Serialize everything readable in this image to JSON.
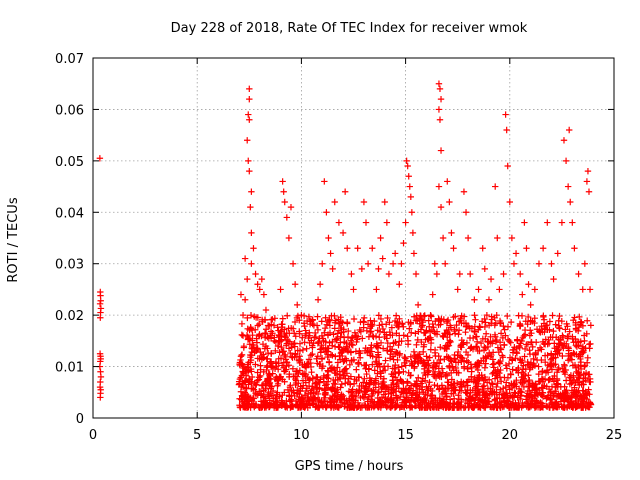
{
  "chart_data": {
    "type": "scatter",
    "title": "Day 228 of 2018, Rate Of TEC Index for receiver wmok",
    "xlabel": "GPS time / hours",
    "ylabel": "ROTI / TECUs",
    "xlim": [
      0,
      25
    ],
    "ylim": [
      0,
      0.07
    ],
    "xticks": [
      0,
      5,
      10,
      15,
      20,
      25
    ],
    "yticks": [
      0,
      0.01,
      0.02,
      0.03,
      0.04,
      0.05,
      0.06,
      0.07
    ],
    "ytick_labels": [
      "0",
      "0.01",
      "0.02",
      "0.03",
      "0.04",
      "0.05",
      "0.06",
      "0.07"
    ],
    "grid": true,
    "marker": "+",
    "color": "#ff0000",
    "series": [
      {
        "points": [
          [
            0.33,
            0.0505
          ],
          [
            0.35,
            0.0245
          ],
          [
            0.36,
            0.0238
          ],
          [
            0.37,
            0.0228
          ],
          [
            0.34,
            0.0222
          ],
          [
            0.38,
            0.0213
          ],
          [
            0.36,
            0.0205
          ],
          [
            0.35,
            0.0195
          ],
          [
            0.34,
            0.0125
          ],
          [
            0.36,
            0.012
          ],
          [
            0.37,
            0.0115
          ],
          [
            0.35,
            0.011
          ],
          [
            0.33,
            0.01
          ],
          [
            0.36,
            0.009
          ],
          [
            0.38,
            0.008
          ],
          [
            0.35,
            0.007
          ],
          [
            0.34,
            0.006
          ],
          [
            0.37,
            0.0055
          ],
          [
            0.36,
            0.0048
          ],
          [
            0.35,
            0.004
          ],
          [
            7.1,
            0.024
          ],
          [
            7.2,
            0.02
          ],
          [
            7.3,
            0.023
          ],
          [
            7.2,
            0.016
          ],
          [
            7.1,
            0.012
          ],
          [
            7.3,
            0.009
          ],
          [
            7.2,
            0.006
          ],
          [
            7.4,
            0.004
          ],
          [
            7.3,
            0.031
          ],
          [
            7.4,
            0.027
          ],
          [
            7.5,
            0.064
          ],
          [
            7.5,
            0.062
          ],
          [
            7.45,
            0.059
          ],
          [
            7.5,
            0.058
          ],
          [
            7.4,
            0.054
          ],
          [
            7.45,
            0.05
          ],
          [
            7.5,
            0.048
          ],
          [
            7.6,
            0.044
          ],
          [
            7.55,
            0.041
          ],
          [
            7.6,
            0.036
          ],
          [
            7.7,
            0.033
          ],
          [
            7.6,
            0.03
          ],
          [
            7.8,
            0.028
          ],
          [
            7.9,
            0.026
          ],
          [
            8.0,
            0.025
          ],
          [
            8.1,
            0.027
          ],
          [
            8.2,
            0.024
          ],
          [
            8.3,
            0.021
          ],
          [
            8.4,
            0.018
          ],
          [
            8.5,
            0.016
          ],
          [
            8.7,
            0.015
          ],
          [
            8.9,
            0.017
          ],
          [
            9.0,
            0.025
          ],
          [
            9.1,
            0.046
          ],
          [
            9.15,
            0.044
          ],
          [
            9.2,
            0.042
          ],
          [
            9.3,
            0.039
          ],
          [
            9.4,
            0.035
          ],
          [
            9.5,
            0.041
          ],
          [
            9.6,
            0.03
          ],
          [
            9.7,
            0.026
          ],
          [
            9.8,
            0.022
          ],
          [
            9.9,
            0.019
          ],
          [
            10.0,
            0.02
          ],
          [
            10.2,
            0.017
          ],
          [
            10.4,
            0.016
          ],
          [
            10.6,
            0.018
          ],
          [
            10.8,
            0.023
          ],
          [
            10.9,
            0.026
          ],
          [
            11.0,
            0.03
          ],
          [
            11.1,
            0.046
          ],
          [
            11.2,
            0.04
          ],
          [
            11.3,
            0.035
          ],
          [
            11.4,
            0.032
          ],
          [
            11.5,
            0.029
          ],
          [
            11.6,
            0.042
          ],
          [
            11.8,
            0.038
          ],
          [
            12.0,
            0.036
          ],
          [
            12.1,
            0.044
          ],
          [
            12.2,
            0.033
          ],
          [
            12.4,
            0.028
          ],
          [
            12.5,
            0.025
          ],
          [
            12.7,
            0.033
          ],
          [
            12.9,
            0.029
          ],
          [
            13.0,
            0.042
          ],
          [
            13.1,
            0.038
          ],
          [
            13.2,
            0.03
          ],
          [
            13.4,
            0.033
          ],
          [
            13.6,
            0.025
          ],
          [
            13.7,
            0.029
          ],
          [
            13.8,
            0.035
          ],
          [
            13.9,
            0.031
          ],
          [
            14.0,
            0.042
          ],
          [
            14.1,
            0.038
          ],
          [
            14.2,
            0.028
          ],
          [
            14.4,
            0.03
          ],
          [
            14.5,
            0.032
          ],
          [
            14.7,
            0.026
          ],
          [
            14.8,
            0.03
          ],
          [
            14.9,
            0.034
          ],
          [
            15.0,
            0.038
          ],
          [
            15.05,
            0.05
          ],
          [
            15.1,
            0.049
          ],
          [
            15.15,
            0.047
          ],
          [
            15.2,
            0.045
          ],
          [
            15.25,
            0.043
          ],
          [
            15.3,
            0.04
          ],
          [
            15.35,
            0.036
          ],
          [
            15.4,
            0.032
          ],
          [
            15.5,
            0.028
          ],
          [
            15.6,
            0.022
          ],
          [
            15.8,
            0.019
          ],
          [
            16.0,
            0.017
          ],
          [
            16.2,
            0.02
          ],
          [
            16.3,
            0.024
          ],
          [
            16.4,
            0.03
          ],
          [
            16.5,
            0.028
          ],
          [
            16.6,
            0.065
          ],
          [
            16.65,
            0.064
          ],
          [
            16.7,
            0.062
          ],
          [
            16.6,
            0.06
          ],
          [
            16.65,
            0.058
          ],
          [
            16.7,
            0.052
          ],
          [
            16.6,
            0.045
          ],
          [
            16.7,
            0.041
          ],
          [
            16.8,
            0.035
          ],
          [
            16.9,
            0.03
          ],
          [
            17.0,
            0.046
          ],
          [
            17.1,
            0.042
          ],
          [
            17.2,
            0.036
          ],
          [
            17.3,
            0.033
          ],
          [
            17.5,
            0.025
          ],
          [
            17.6,
            0.028
          ],
          [
            17.8,
            0.044
          ],
          [
            17.9,
            0.04
          ],
          [
            18.0,
            0.035
          ],
          [
            18.1,
            0.028
          ],
          [
            18.3,
            0.023
          ],
          [
            18.5,
            0.025
          ],
          [
            18.7,
            0.033
          ],
          [
            18.8,
            0.029
          ],
          [
            18.9,
            0.02
          ],
          [
            19.0,
            0.023
          ],
          [
            19.1,
            0.027
          ],
          [
            19.3,
            0.045
          ],
          [
            19.4,
            0.035
          ],
          [
            19.5,
            0.025
          ],
          [
            19.7,
            0.028
          ],
          [
            19.8,
            0.059
          ],
          [
            19.85,
            0.056
          ],
          [
            19.9,
            0.049
          ],
          [
            20.0,
            0.042
          ],
          [
            20.1,
            0.035
          ],
          [
            20.2,
            0.03
          ],
          [
            20.3,
            0.032
          ],
          [
            20.5,
            0.028
          ],
          [
            20.6,
            0.024
          ],
          [
            20.7,
            0.038
          ],
          [
            20.8,
            0.033
          ],
          [
            20.9,
            0.026
          ],
          [
            21.0,
            0.022
          ],
          [
            21.2,
            0.025
          ],
          [
            21.4,
            0.03
          ],
          [
            21.6,
            0.033
          ],
          [
            21.8,
            0.038
          ],
          [
            22.0,
            0.03
          ],
          [
            22.1,
            0.027
          ],
          [
            22.3,
            0.032
          ],
          [
            22.5,
            0.038
          ],
          [
            22.6,
            0.054
          ],
          [
            22.7,
            0.05
          ],
          [
            22.8,
            0.045
          ],
          [
            22.85,
            0.056
          ],
          [
            22.9,
            0.042
          ],
          [
            23.0,
            0.038
          ],
          [
            23.1,
            0.033
          ],
          [
            23.3,
            0.028
          ],
          [
            23.5,
            0.025
          ],
          [
            23.6,
            0.03
          ],
          [
            23.7,
            0.046
          ],
          [
            23.75,
            0.048
          ],
          [
            23.8,
            0.044
          ],
          [
            23.85,
            0.025
          ]
        ]
      }
    ],
    "dense_band": {
      "x_start": 7.0,
      "x_end": 23.9,
      "y_min": 0.002,
      "y_max": 0.02
    }
  }
}
